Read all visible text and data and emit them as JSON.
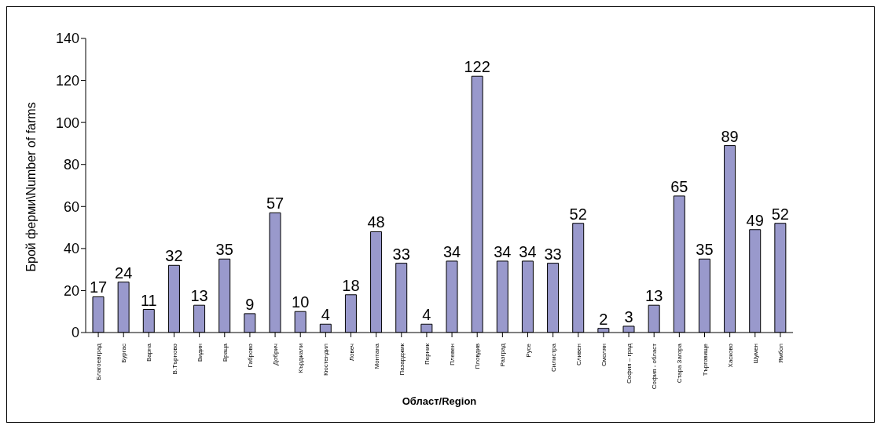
{
  "chart_data": {
    "type": "bar",
    "xlabel": "Област/Region",
    "ylabel": "Брой ферми\\Number of farms",
    "categories": [
      "Благоевград",
      "Бургас",
      "Варна",
      "В.Търново",
      "Видин",
      "Враца",
      "Габрово",
      "Добрич",
      "Кърджали",
      "Кюстендил",
      "Ловеч",
      "Монтана",
      "Пазарджик",
      "Перник",
      "Плевен",
      "Пловдив",
      "Разград",
      "Русе",
      "Силистра",
      "Сливен",
      "Смолян",
      "София – град",
      "София - област",
      "Стара Загора",
      "Търговище",
      "Хасково",
      "Шумен",
      "Ямбол"
    ],
    "values": [
      17,
      24,
      11,
      32,
      13,
      35,
      9,
      57,
      10,
      4,
      18,
      48,
      33,
      4,
      34,
      122,
      34,
      34,
      33,
      52,
      2,
      3,
      13,
      65,
      35,
      89,
      49,
      52
    ],
    "color": "#9999cc",
    "ylim": [
      0,
      140
    ],
    "yticks": [
      0,
      20,
      40,
      60,
      80,
      100,
      120,
      140
    ],
    "grid": false,
    "legend": false,
    "data_labels": true
  }
}
